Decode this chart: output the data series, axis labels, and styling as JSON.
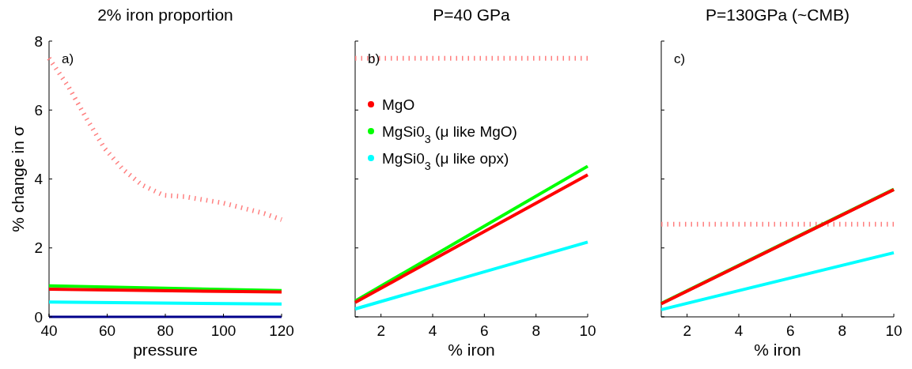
{
  "chart_data": [
    {
      "type": "line",
      "title": "2% iron proportion",
      "xlabel": "pressure",
      "ylabel": "% change in σ",
      "annotations": [
        "a)"
      ],
      "xlim": [
        40,
        120
      ],
      "xticks": [
        40,
        60,
        80,
        100,
        120
      ],
      "ylim": [
        0,
        8
      ],
      "yticks": [
        0,
        2,
        4,
        6,
        8
      ],
      "grid": false,
      "legend": false,
      "series": [
        {
          "color": "#00008b",
          "x": [
            40,
            120
          ],
          "values": [
            0,
            0
          ]
        },
        {
          "color": "#ff8080",
          "line_style": "dotted",
          "x": [
            40,
            46.5,
            53,
            59,
            65.3,
            71.9,
            79.3,
            86.5,
            100,
            114,
            120
          ],
          "values": [
            7.5,
            6.7,
            5.74,
            4.9,
            4.29,
            3.83,
            3.53,
            3.49,
            3.3,
            3.0,
            2.82
          ]
        },
        {
          "color": "#00ff00",
          "x": [
            40,
            120
          ],
          "values": [
            0.9,
            0.76
          ]
        },
        {
          "color": "#ff0000",
          "x": [
            40,
            120
          ],
          "values": [
            0.8,
            0.72
          ]
        },
        {
          "color": "#00ffff",
          "x": [
            40,
            120
          ],
          "values": [
            0.43,
            0.37
          ]
        }
      ]
    },
    {
      "type": "line",
      "title": "P=40 GPa",
      "xlabel": "% iron",
      "annotations": [
        "b)"
      ],
      "xlim": [
        1,
        10
      ],
      "xticks": [
        2,
        4,
        6,
        8,
        10
      ],
      "ylim": [
        0,
        8
      ],
      "yticks": [
        0,
        2,
        4,
        6,
        8
      ],
      "tick_labels": "x",
      "grid": false,
      "legend": "top left",
      "series": [
        {
          "color": "#ff8080",
          "line_style": "dotted",
          "x": [
            1,
            10
          ],
          "values": [
            7.5,
            7.5
          ]
        },
        {
          "name": "MgSi0$_{3}$ (μ like MgO)",
          "color": "#00ff00",
          "x": [
            1,
            10
          ],
          "values": [
            0.46,
            4.37
          ]
        },
        {
          "name": "MgO",
          "color": "#ff0000",
          "x": [
            1,
            10
          ],
          "values": [
            0.42,
            4.12
          ]
        },
        {
          "name": "MgSi0$_{3}$ (μ like opx)",
          "color": "#00ffff",
          "x": [
            1,
            10
          ],
          "values": [
            0.23,
            2.17
          ]
        }
      ]
    },
    {
      "type": "line",
      "title": "P=130GPa (~CMB)",
      "xlabel": "% iron",
      "annotations": [
        "c)"
      ],
      "xlim": [
        1,
        10
      ],
      "xticks": [
        2,
        4,
        6,
        8,
        10
      ],
      "ylim": [
        0,
        8
      ],
      "yticks": [
        0,
        2,
        4,
        6,
        8
      ],
      "tick_labels": "x",
      "grid": false,
      "legend": false,
      "series": [
        {
          "color": "#ff8080",
          "line_style": "dotted",
          "x": [
            1,
            10
          ],
          "values": [
            2.69,
            2.69
          ]
        },
        {
          "color": "#00ff00",
          "x": [
            1,
            10
          ],
          "values": [
            0.39,
            3.7
          ]
        },
        {
          "color": "#ff0000",
          "x": [
            1,
            10
          ],
          "values": [
            0.38,
            3.69
          ]
        },
        {
          "color": "#00ffff",
          "x": [
            1,
            10
          ],
          "values": [
            0.21,
            1.86
          ]
        }
      ]
    }
  ]
}
